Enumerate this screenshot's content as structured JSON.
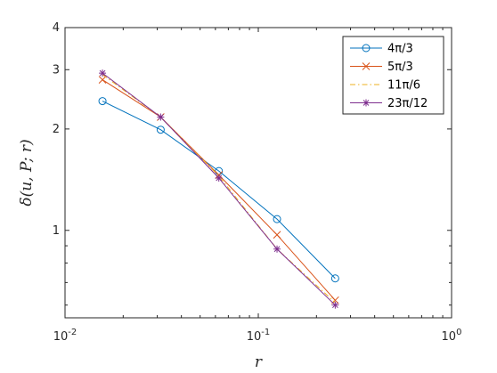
{
  "chart_data": {
    "type": "line",
    "xlabel": "r",
    "ylabel": "δ(u, P; r)",
    "xscale": "log",
    "yscale": "log",
    "xlim": [
      0.01,
      1
    ],
    "ylim": [
      0.55,
      4
    ],
    "xticks": [
      {
        "value": 0.01,
        "base": "10",
        "exp": "-2"
      },
      {
        "value": 0.1,
        "base": "10",
        "exp": "-1"
      },
      {
        "value": 1,
        "base": "10",
        "exp": "0"
      }
    ],
    "yticks": [
      {
        "value": 1,
        "label": "1"
      },
      {
        "value": 2,
        "label": "2"
      },
      {
        "value": 3,
        "label": "3"
      },
      {
        "value": 4,
        "label": "4"
      }
    ],
    "grid": false,
    "legend_position": "top-right",
    "x": [
      0.015625,
      0.03125,
      0.0625,
      0.125,
      0.25
    ],
    "series": [
      {
        "name": "4π/3",
        "color": "#0072BD",
        "marker": "circle",
        "line": "solid",
        "values": [
          2.42,
          1.99,
          1.5,
          1.08,
          0.72
        ]
      },
      {
        "name": "5π/3",
        "color": "#D95319",
        "marker": "x",
        "line": "solid",
        "values": [
          2.8,
          2.17,
          1.46,
          0.97,
          0.62
        ]
      },
      {
        "name": "11π/6",
        "color": "#EDB120",
        "marker": "none",
        "line": "dashdot",
        "values": [
          2.9,
          2.17,
          1.45,
          0.88,
          0.61
        ]
      },
      {
        "name": "23π/12",
        "color": "#7E2F8E",
        "marker": "asterisk",
        "line": "solid",
        "values": [
          2.93,
          2.17,
          1.43,
          0.88,
          0.6
        ]
      }
    ]
  }
}
